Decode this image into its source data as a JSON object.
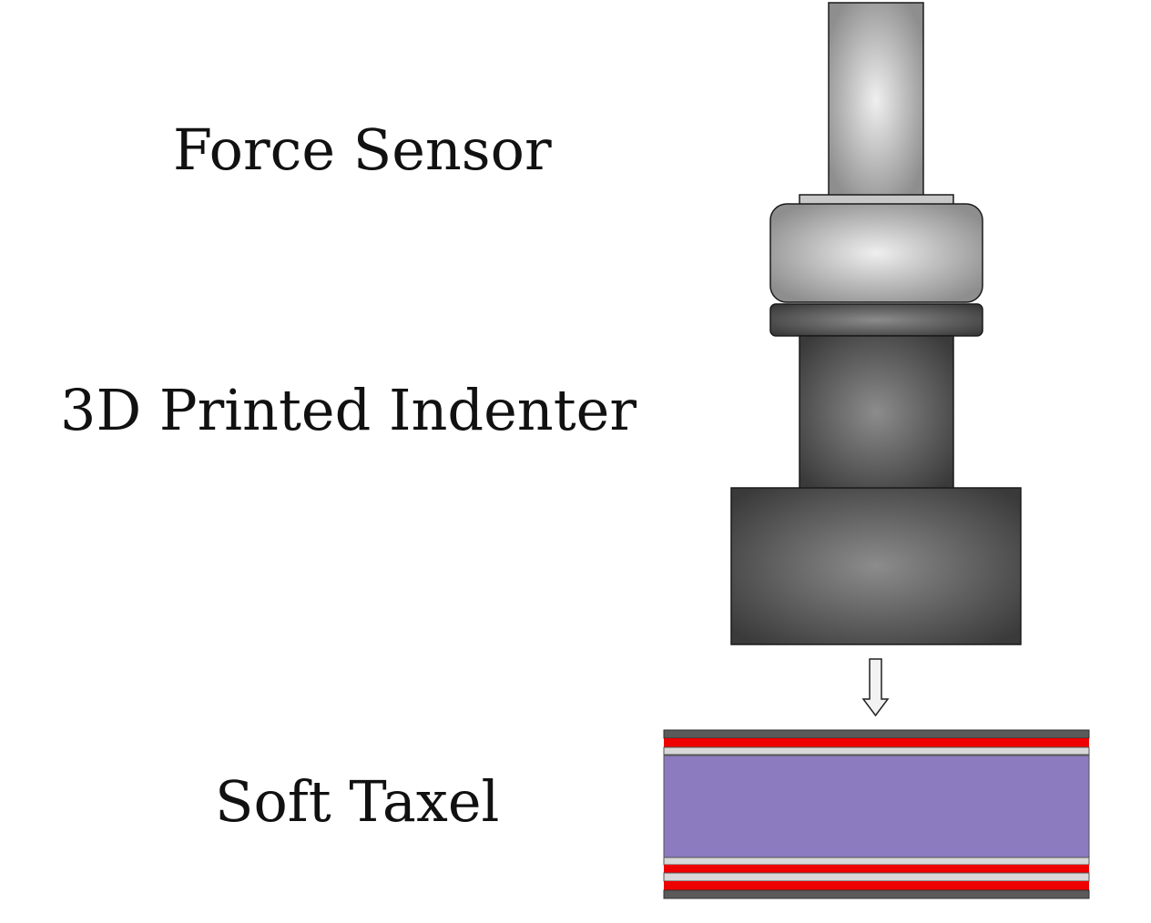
{
  "labels": {
    "force_sensor": "Force Sensor",
    "indenter": "3D Printed Indenter",
    "taxel": "Soft Taxel"
  },
  "colors": {
    "sensor_light": "#ececec",
    "sensor_dark": "#8f8f8f",
    "indenter_light": "#8a8a8a",
    "indenter_dark": "#3c3c3c",
    "taxel_core": "#8c7bbf",
    "electrode_red": "#ee0000",
    "layer_gray": "#5a5a5a",
    "layer_light": "#d8d8d8",
    "arrow_fill": "#f2f2f2"
  }
}
